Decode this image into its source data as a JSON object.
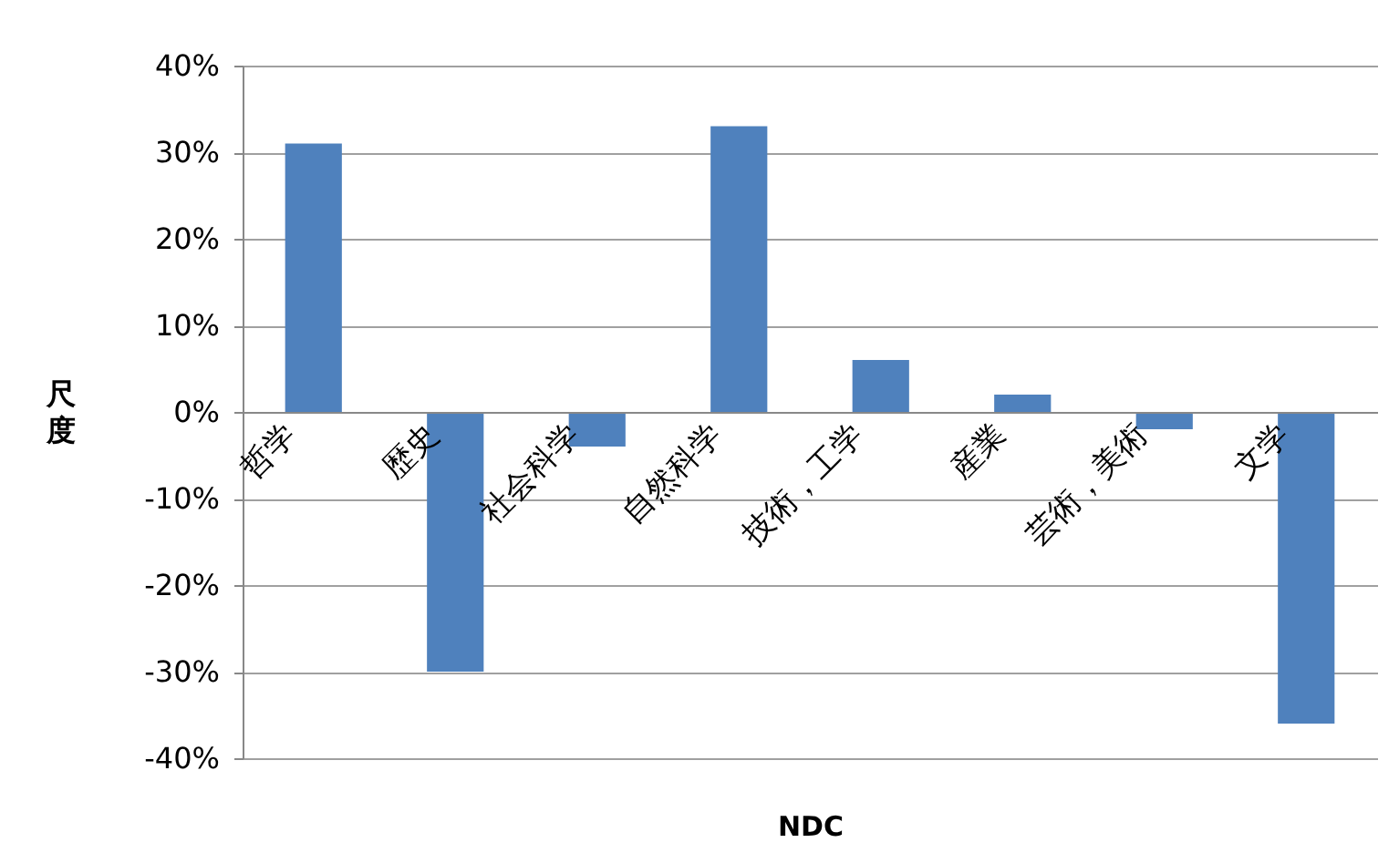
{
  "chart_data": {
    "type": "bar",
    "xlabel": "NDC",
    "ylabel": "尺度",
    "categories": [
      "哲学",
      "歴史",
      "社会科学",
      "自然科学",
      "技術，工学",
      "産業",
      "芸術，美術",
      "文学"
    ],
    "values": [
      31,
      -30,
      -4,
      33,
      6,
      2,
      -2,
      -36
    ],
    "color": "#4f81bd",
    "ylim": [
      -40,
      40
    ],
    "yticks": [
      {
        "value": -40,
        "label": "-40%"
      },
      {
        "value": -30,
        "label": "-30%"
      },
      {
        "value": -20,
        "label": "-20%"
      },
      {
        "value": -10,
        "label": "-10%"
      },
      {
        "value": 0,
        "label": "0%"
      },
      {
        "value": 10,
        "label": "10%"
      },
      {
        "value": 20,
        "label": "20%"
      },
      {
        "value": 30,
        "label": "30%"
      },
      {
        "value": 40,
        "label": "40%"
      }
    ],
    "grid": "y"
  }
}
